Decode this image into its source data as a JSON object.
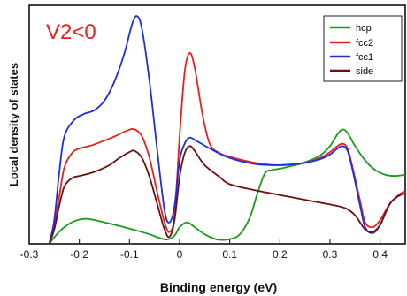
{
  "chart_data": {
    "type": "line",
    "title": "",
    "annotation": "V2<0",
    "annotation_color": "#e8201c",
    "xlabel": "Binding energy (eV)",
    "ylabel": "Local density of states",
    "xlim": [
      -0.3,
      0.45
    ],
    "ylim": [
      0,
      1.0
    ],
    "x_ticks": [
      -0.3,
      -0.2,
      -0.1,
      0.0,
      0.1,
      0.2,
      0.3,
      0.4
    ],
    "x_tick_labels": [
      "-0.3",
      "-0.2",
      "-0.1",
      "0",
      "0.1",
      "0.2",
      "0.3",
      "0.4"
    ],
    "y_ticks_shown": false,
    "grid": false,
    "legend_position": "top-right",
    "series": [
      {
        "name": "hcp",
        "color": "#1a9a1a",
        "points": [
          [
            -0.26,
            0.0
          ],
          [
            -0.245,
            0.04
          ],
          [
            -0.23,
            0.07
          ],
          [
            -0.21,
            0.095
          ],
          [
            -0.19,
            0.105
          ],
          [
            -0.17,
            0.1
          ],
          [
            -0.15,
            0.09
          ],
          [
            -0.12,
            0.075
          ],
          [
            -0.09,
            0.058
          ],
          [
            -0.06,
            0.04
          ],
          [
            -0.04,
            0.025
          ],
          [
            -0.025,
            0.018
          ],
          [
            -0.01,
            0.035
          ],
          [
            0.0,
            0.07
          ],
          [
            0.015,
            0.09
          ],
          [
            0.03,
            0.07
          ],
          [
            0.05,
            0.04
          ],
          [
            0.075,
            0.018
          ],
          [
            0.1,
            0.02
          ],
          [
            0.12,
            0.04
          ],
          [
            0.14,
            0.11
          ],
          [
            0.155,
            0.21
          ],
          [
            0.17,
            0.295
          ],
          [
            0.185,
            0.31
          ],
          [
            0.2,
            0.315
          ],
          [
            0.22,
            0.325
          ],
          [
            0.24,
            0.335
          ],
          [
            0.26,
            0.35
          ],
          [
            0.28,
            0.37
          ],
          [
            0.3,
            0.41
          ],
          [
            0.315,
            0.46
          ],
          [
            0.325,
            0.48
          ],
          [
            0.335,
            0.465
          ],
          [
            0.35,
            0.41
          ],
          [
            0.37,
            0.35
          ],
          [
            0.39,
            0.31
          ],
          [
            0.41,
            0.29
          ],
          [
            0.43,
            0.285
          ],
          [
            0.45,
            0.29
          ]
        ]
      },
      {
        "name": "fcc2",
        "color": "#e8201c",
        "points": [
          [
            -0.26,
            0.0
          ],
          [
            -0.25,
            0.08
          ],
          [
            -0.24,
            0.2
          ],
          [
            -0.23,
            0.32
          ],
          [
            -0.215,
            0.38
          ],
          [
            -0.2,
            0.4
          ],
          [
            -0.18,
            0.41
          ],
          [
            -0.16,
            0.425
          ],
          [
            -0.13,
            0.45
          ],
          [
            -0.105,
            0.475
          ],
          [
            -0.09,
            0.48
          ],
          [
            -0.075,
            0.45
          ],
          [
            -0.06,
            0.36
          ],
          [
            -0.045,
            0.22
          ],
          [
            -0.03,
            0.09
          ],
          [
            -0.02,
            0.05
          ],
          [
            -0.01,
            0.12
          ],
          [
            0.0,
            0.45
          ],
          [
            0.01,
            0.72
          ],
          [
            0.02,
            0.8
          ],
          [
            0.03,
            0.74
          ],
          [
            0.045,
            0.55
          ],
          [
            0.06,
            0.42
          ],
          [
            0.08,
            0.38
          ],
          [
            0.1,
            0.365
          ],
          [
            0.15,
            0.34
          ],
          [
            0.2,
            0.33
          ],
          [
            0.25,
            0.34
          ],
          [
            0.28,
            0.36
          ],
          [
            0.3,
            0.385
          ],
          [
            0.315,
            0.41
          ],
          [
            0.325,
            0.42
          ],
          [
            0.335,
            0.4
          ],
          [
            0.345,
            0.32
          ],
          [
            0.36,
            0.18
          ],
          [
            0.37,
            0.09
          ],
          [
            0.385,
            0.07
          ],
          [
            0.4,
            0.1
          ],
          [
            0.42,
            0.17
          ],
          [
            0.44,
            0.21
          ],
          [
            0.45,
            0.22
          ]
        ]
      },
      {
        "name": "fcc1",
        "color": "#1c2ee0",
        "points": [
          [
            -0.26,
            0.0
          ],
          [
            -0.25,
            0.1
          ],
          [
            -0.24,
            0.3
          ],
          [
            -0.23,
            0.45
          ],
          [
            -0.21,
            0.52
          ],
          [
            -0.19,
            0.545
          ],
          [
            -0.17,
            0.56
          ],
          [
            -0.15,
            0.6
          ],
          [
            -0.13,
            0.68
          ],
          [
            -0.11,
            0.8
          ],
          [
            -0.095,
            0.92
          ],
          [
            -0.085,
            0.955
          ],
          [
            -0.075,
            0.9
          ],
          [
            -0.06,
            0.68
          ],
          [
            -0.045,
            0.4
          ],
          [
            -0.03,
            0.14
          ],
          [
            -0.02,
            0.09
          ],
          [
            -0.01,
            0.16
          ],
          [
            0.0,
            0.35
          ],
          [
            0.01,
            0.42
          ],
          [
            0.02,
            0.445
          ],
          [
            0.035,
            0.43
          ],
          [
            0.06,
            0.4
          ],
          [
            0.1,
            0.36
          ],
          [
            0.15,
            0.335
          ],
          [
            0.2,
            0.33
          ],
          [
            0.25,
            0.34
          ],
          [
            0.28,
            0.355
          ],
          [
            0.3,
            0.375
          ],
          [
            0.315,
            0.4
          ],
          [
            0.325,
            0.41
          ],
          [
            0.335,
            0.39
          ],
          [
            0.345,
            0.31
          ],
          [
            0.36,
            0.16
          ],
          [
            0.37,
            0.07
          ],
          [
            0.385,
            0.045
          ],
          [
            0.4,
            0.08
          ],
          [
            0.42,
            0.17
          ],
          [
            0.44,
            0.205
          ],
          [
            0.45,
            0.21
          ]
        ]
      },
      {
        "name": "side",
        "color": "#6b0f0f",
        "points": [
          [
            -0.26,
            0.0
          ],
          [
            -0.25,
            0.06
          ],
          [
            -0.24,
            0.16
          ],
          [
            -0.23,
            0.24
          ],
          [
            -0.215,
            0.275
          ],
          [
            -0.2,
            0.285
          ],
          [
            -0.18,
            0.295
          ],
          [
            -0.16,
            0.31
          ],
          [
            -0.14,
            0.33
          ],
          [
            -0.12,
            0.36
          ],
          [
            -0.1,
            0.385
          ],
          [
            -0.09,
            0.39
          ],
          [
            -0.075,
            0.36
          ],
          [
            -0.06,
            0.28
          ],
          [
            -0.045,
            0.17
          ],
          [
            -0.03,
            0.06
          ],
          [
            -0.02,
            0.03
          ],
          [
            -0.01,
            0.1
          ],
          [
            0.0,
            0.28
          ],
          [
            0.01,
            0.38
          ],
          [
            0.02,
            0.41
          ],
          [
            0.03,
            0.39
          ],
          [
            0.05,
            0.33
          ],
          [
            0.08,
            0.28
          ],
          [
            0.1,
            0.25
          ],
          [
            0.15,
            0.225
          ],
          [
            0.2,
            0.205
          ],
          [
            0.25,
            0.185
          ],
          [
            0.3,
            0.165
          ],
          [
            0.33,
            0.15
          ],
          [
            0.35,
            0.12
          ],
          [
            0.37,
            0.06
          ],
          [
            0.385,
            0.05
          ],
          [
            0.4,
            0.08
          ],
          [
            0.42,
            0.17
          ],
          [
            0.44,
            0.205
          ],
          [
            0.45,
            0.21
          ]
        ]
      }
    ]
  }
}
